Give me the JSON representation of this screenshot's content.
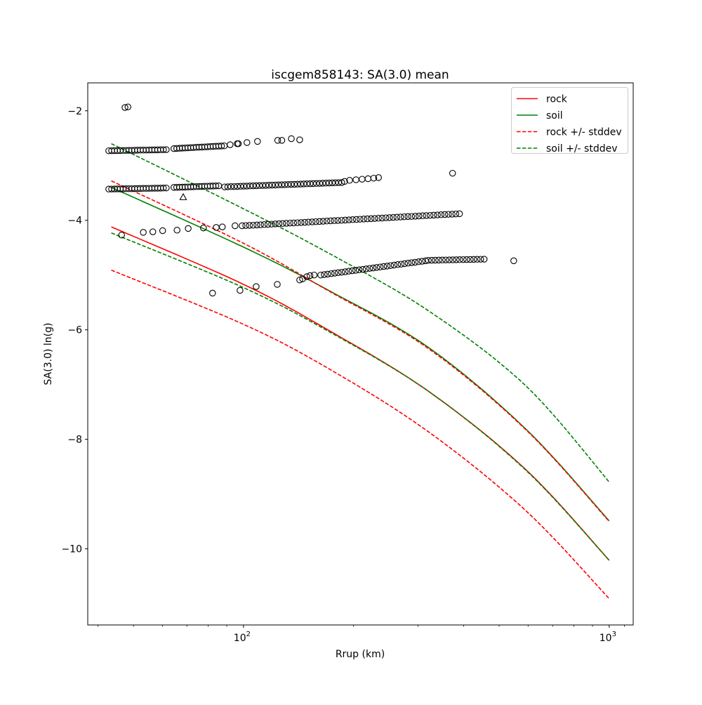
{
  "title": "iscgem858143: SA(3.0) mean",
  "axes": {
    "xlabel": "Rrup (km)",
    "ylabel": "SA(3.0) ln(g)",
    "xscale": "log",
    "xlim": [
      37.5,
      1163
    ],
    "ylim": [
      -11.39,
      -1.49
    ],
    "xticks": [
      {
        "value": 100,
        "base": "10",
        "exp": "2"
      },
      {
        "value": 1000,
        "base": "10",
        "exp": "3"
      }
    ],
    "xminor": [
      40,
      50,
      60,
      70,
      80,
      90,
      200,
      300,
      400,
      500,
      600,
      700,
      800,
      900,
      1100
    ],
    "yticks": [
      {
        "value": -2,
        "label": "−2"
      },
      {
        "value": -4,
        "label": "−4"
      },
      {
        "value": -6,
        "label": "−6"
      },
      {
        "value": -8,
        "label": "−8"
      },
      {
        "value": -10,
        "label": "−10"
      }
    ]
  },
  "legend": {
    "entries": [
      {
        "label": "rock",
        "color": "#ff0000",
        "dash": "none"
      },
      {
        "label": "soil",
        "color": "#008000",
        "dash": "none"
      },
      {
        "label": "rock +/- stddev",
        "color": "#ff0000",
        "dash": "5.5 2.4"
      },
      {
        "label": "soil +/- stddev",
        "color": "#008000",
        "dash": "5.5 2.4"
      }
    ]
  },
  "chart_data": {
    "type": "scatter",
    "title": "iscgem858143: SA(3.0) mean",
    "xlabel": "Rrup (km)",
    "ylabel": "SA(3.0) ln(g)",
    "x_units": "km",
    "curves": {
      "x": [
        43.5,
        100,
        172,
        320,
        593,
        1000
      ],
      "series": [
        {
          "name": "rock",
          "color": "#ff0000",
          "style": "solid",
          "values": [
            -4.12,
            -5.17,
            -6.02,
            -7.12,
            -8.56,
            -10.21
          ]
        },
        {
          "name": "soil",
          "color": "#008000",
          "style": "solid",
          "values": [
            -3.4,
            -4.49,
            -5.29,
            -6.32,
            -7.82,
            -9.49
          ]
        },
        {
          "name": "rock + stddev",
          "color": "#ff0000",
          "style": "dashed",
          "values": [
            -3.28,
            -4.42,
            -5.3,
            -6.34,
            -7.83,
            -9.5
          ]
        },
        {
          "name": "rock - stddev",
          "color": "#ff0000",
          "style": "dashed",
          "values": [
            -4.91,
            -5.9,
            -6.72,
            -7.86,
            -9.31,
            -10.91
          ]
        },
        {
          "name": "soil + stddev",
          "color": "#008000",
          "style": "dashed",
          "values": [
            -2.6,
            -3.79,
            -4.61,
            -5.65,
            -7.03,
            -8.78
          ]
        },
        {
          "name": "soil - stddev",
          "color": "#008000",
          "style": "dashed",
          "values": [
            -4.23,
            -5.23,
            -6.04,
            -7.12,
            -8.57,
            -10.21
          ]
        }
      ]
    },
    "scatter": {
      "marker": "circle",
      "color": "#000000",
      "groups": [
        {
          "name": "band-ln-1.9",
          "parts": [
            {
              "points": [
                [
                  47.4,
                  -1.94
                ],
                [
                  48.3,
                  -1.93
                ]
              ]
            }
          ]
        },
        {
          "name": "band-ln-2.7",
          "parts": [
            {
              "band": {
                "d": [
                  42.8,
                  61.5
                ],
                "v": [
                  -2.73,
                  -2.71
                ],
                "n": 21
              }
            },
            {
              "band": {
                "d": [
                  64.5,
                  88.6
                ],
                "v": [
                  -2.69,
                  -2.64
                ],
                "n": 19
              }
            },
            {
              "points": [
                [
                  91.9,
                  -2.62
                ],
                [
                  96.1,
                  -2.6
                ],
                [
                  96.8,
                  -2.6
                ],
                [
                  102.2,
                  -2.58
                ],
                [
                  109.2,
                  -2.56
                ],
                [
                  124.0,
                  -2.54
                ],
                [
                  127.3,
                  -2.54
                ],
                [
                  135.1,
                  -2.51
                ],
                [
                  142.4,
                  -2.53
                ]
              ]
            }
          ]
        },
        {
          "name": "band-ln-3.4",
          "parts": [
            {
              "band": {
                "d": [
                  42.8,
                  61.5
                ],
                "v": [
                  -3.43,
                  -3.41
                ],
                "n": 21
              }
            },
            {
              "band": {
                "d": [
                  64.5,
                  85.5
                ],
                "v": [
                  -3.4,
                  -3.37
                ],
                "n": 17
              }
            },
            {
              "band": {
                "d": [
                  88.8,
                  185.6
                ],
                "v": [
                  -3.39,
                  -3.31
                ],
                "n": 38
              }
            },
            {
              "points": [
                [
                  189,
                  -3.29
                ],
                [
                  195,
                  -3.27
                ],
                [
                  203,
                  -3.26
                ],
                [
                  211,
                  -3.25
                ],
                [
                  219,
                  -3.24
                ],
                [
                  227,
                  -3.23
                ],
                [
                  234,
                  -3.22
                ],
                [
                  373,
                  -3.14
                ]
              ]
            }
          ]
        },
        {
          "name": "band-ln-4.0",
          "parts": [
            {
              "points": [
                [
                  46.4,
                  -4.27
                ],
                [
                  53.2,
                  -4.22
                ],
                [
                  56.5,
                  -4.21
                ],
                [
                  60.1,
                  -4.19
                ],
                [
                  65.8,
                  -4.18
                ],
                [
                  70.6,
                  -4.15
                ],
                [
                  77.7,
                  -4.14
                ],
                [
                  84.2,
                  -4.13
                ],
                [
                  87.5,
                  -4.12
                ],
                [
                  94.8,
                  -4.1
                ]
              ]
            },
            {
              "band": {
                "d": [
                  99.1,
                  389.6
                ],
                "v": [
                  -4.1,
                  -3.88
                ],
                "n": 60
              }
            }
          ]
        },
        {
          "name": "band-ln-4.8",
          "parts": [
            {
              "points": [
                [
                  142.4,
                  -5.09
                ],
                [
                  145,
                  -5.07
                ],
                [
                  149,
                  -5.03
                ],
                [
                  152,
                  -5.01
                ],
                [
                  156,
                  -5.0
                ]
              ]
            },
            {
              "band": {
                "d": [
                  162.6,
                  314.6
                ],
                "v": [
                  -5.0,
                  -4.74
                ],
                "n": 31
              }
            },
            {
              "band": {
                "d": [
                  320,
                  455
                ],
                "v": [
                  -4.73,
                  -4.71
                ],
                "n": 17
              }
            },
            {
              "points": [
                [
                  548,
                  -4.74
                ]
              ]
            }
          ]
        },
        {
          "name": "sparse-low",
          "parts": [
            {
              "points": [
                [
                  82.3,
                  -5.33
                ],
                [
                  97.8,
                  -5.28
                ],
                [
                  108.3,
                  -5.21
                ],
                [
                  123.7,
                  -5.17
                ]
              ]
            }
          ]
        }
      ]
    },
    "triangle_point": {
      "d": 68.4,
      "value": -3.58
    }
  }
}
